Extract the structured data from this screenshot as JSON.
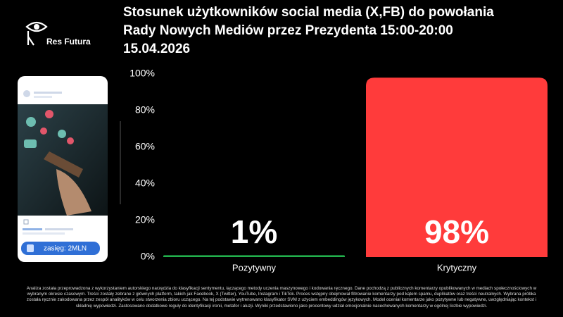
{
  "brand": "Res Futura",
  "phone": {
    "reach": "zasięg: 2MLN"
  },
  "footnote": "Analiza została przeprowadzona z wykorzystaniem autorskiego narzędzia do klasyfikacji sentymentu, łączącego metody uczenia maszynowego i kodowania ręcznego. Dane pochodzą z publicznych komentarzy opublikowanych w mediach społecznościowych w wybranym okresie czasowym. Treści zostały zebrane z głównych platform, takich jak Facebook, X (Twitter), YouTube, Instagram i TikTok. Proces wstępny obejmował filtrowanie komentarzy pod kątem spamu, duplikatów oraz treści neutralnych. Wybrana próbka została ręcznie zakodowana przez zespół analityków w celu stworzenia zbioru uczącego. Na tej podstawie wytrenowano klasyfikator SVM z użyciem embeddingów językowych. Model oceniał komentarze jako pozytywne lub negatywne, uwzględniając kontekst i składnię wypowiedzi. Zastosowano dodatkowe reguły do identyfikacji ironii, metafor i aluzji. Wyniki przedstawiono jako procentowy udział emocjonalnie nacechowanych komentarzy w ogólnej liczbie wypowiedzi.",
  "chart_data": {
    "type": "bar",
    "title": [
      "Stosunek użytkowników social media (X,FB) do powołania",
      "Rady Nowych Mediów przez Prezydenta 15:00-20:00",
      "15.04.2026"
    ],
    "categories": [
      "Pozytywny",
      "Krytyczny"
    ],
    "values": [
      1,
      98
    ],
    "value_labels": [
      "1%",
      "98%"
    ],
    "colors": [
      "#22b14c",
      "#ff3b3b"
    ],
    "ylim": [
      0,
      100
    ],
    "yticks": [
      {
        "value": 0,
        "label": "0%"
      },
      {
        "value": 20,
        "label": "20%"
      },
      {
        "value": 40,
        "label": "40%"
      },
      {
        "value": 60,
        "label": "60%"
      },
      {
        "value": 80,
        "label": "80%"
      },
      {
        "value": 100,
        "label": "100%"
      }
    ]
  }
}
